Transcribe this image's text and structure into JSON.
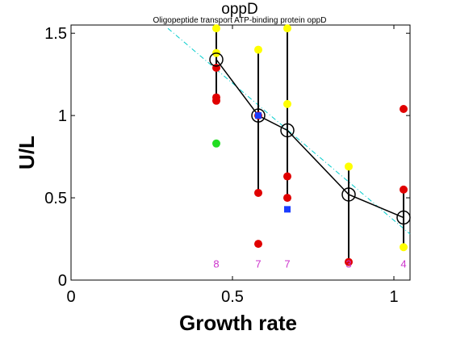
{
  "chart_data": {
    "type": "scatter",
    "title": "oppD",
    "subtitle": "Oligopeptide transport ATP-binding protein oppD",
    "xlabel": "Growth rate",
    "ylabel": "U/L",
    "xlim": [
      0,
      1.05
    ],
    "ylim": [
      0,
      1.55
    ],
    "xticks": [
      0,
      0.5,
      1
    ],
    "xtick_labels": [
      "0",
      "0.5",
      "1"
    ],
    "yticks": [
      0,
      0.5,
      1,
      1.5
    ],
    "ytick_labels": [
      "0",
      "0.5",
      "1",
      "1.5"
    ],
    "grid": false,
    "colors": {
      "red": "#e00000",
      "yellow": "#ffff00",
      "green": "#22dd22",
      "blue": "#1a3cff",
      "mean_line": "#000000",
      "fit_line": "#00cccc",
      "count_label": "#cc33cc"
    },
    "mean_series": {
      "x": [
        0.45,
        0.58,
        0.67,
        0.86,
        1.03
      ],
      "y": [
        1.34,
        1.0,
        0.91,
        0.52,
        0.38
      ]
    },
    "error_bars": [
      {
        "x": 0.45,
        "low": 1.08,
        "high": 1.53
      },
      {
        "x": 0.58,
        "low": 0.53,
        "high": 1.4
      },
      {
        "x": 0.67,
        "low": 0.5,
        "high": 1.53
      },
      {
        "x": 0.86,
        "low": 0.11,
        "high": 0.69
      },
      {
        "x": 1.03,
        "low": 0.21,
        "high": 0.55
      }
    ],
    "fit_line": {
      "x": [
        0.3,
        1.05
      ],
      "y": [
        1.53,
        0.28
      ]
    },
    "points": [
      {
        "x": 0.45,
        "y": 1.53,
        "color": "yellow",
        "marker": "circle"
      },
      {
        "x": 0.45,
        "y": 1.38,
        "color": "yellow",
        "marker": "circle"
      },
      {
        "x": 0.45,
        "y": 1.29,
        "color": "red",
        "marker": "circle"
      },
      {
        "x": 0.45,
        "y": 1.11,
        "color": "red",
        "marker": "circle"
      },
      {
        "x": 0.45,
        "y": 1.09,
        "color": "red",
        "marker": "circle"
      },
      {
        "x": 0.45,
        "y": 0.83,
        "color": "green",
        "marker": "circle"
      },
      {
        "x": 0.58,
        "y": 1.4,
        "color": "yellow",
        "marker": "circle"
      },
      {
        "x": 0.58,
        "y": 1.0,
        "color": "red",
        "marker": "circle"
      },
      {
        "x": 0.58,
        "y": 0.53,
        "color": "red",
        "marker": "circle"
      },
      {
        "x": 0.58,
        "y": 0.22,
        "color": "red",
        "marker": "circle"
      },
      {
        "x": 0.58,
        "y": 1.0,
        "color": "blue",
        "marker": "square"
      },
      {
        "x": 0.67,
        "y": 1.53,
        "color": "yellow",
        "marker": "circle"
      },
      {
        "x": 0.67,
        "y": 1.07,
        "color": "yellow",
        "marker": "circle"
      },
      {
        "x": 0.67,
        "y": 0.63,
        "color": "red",
        "marker": "circle"
      },
      {
        "x": 0.67,
        "y": 0.5,
        "color": "red",
        "marker": "circle"
      },
      {
        "x": 0.67,
        "y": 0.43,
        "color": "blue",
        "marker": "square"
      },
      {
        "x": 0.86,
        "y": 0.69,
        "color": "yellow",
        "marker": "circle"
      },
      {
        "x": 0.86,
        "y": 0.11,
        "color": "red",
        "marker": "circle"
      },
      {
        "x": 1.03,
        "y": 1.04,
        "color": "red",
        "marker": "circle"
      },
      {
        "x": 1.03,
        "y": 0.55,
        "color": "red",
        "marker": "circle"
      },
      {
        "x": 1.03,
        "y": 0.2,
        "color": "yellow",
        "marker": "circle"
      }
    ],
    "counts": [
      {
        "x": 0.45,
        "label": "8"
      },
      {
        "x": 0.58,
        "label": "7"
      },
      {
        "x": 0.67,
        "label": "7"
      },
      {
        "x": 0.86,
        "label": "3"
      },
      {
        "x": 1.03,
        "label": "4"
      }
    ],
    "count_label_y": 0.1
  }
}
